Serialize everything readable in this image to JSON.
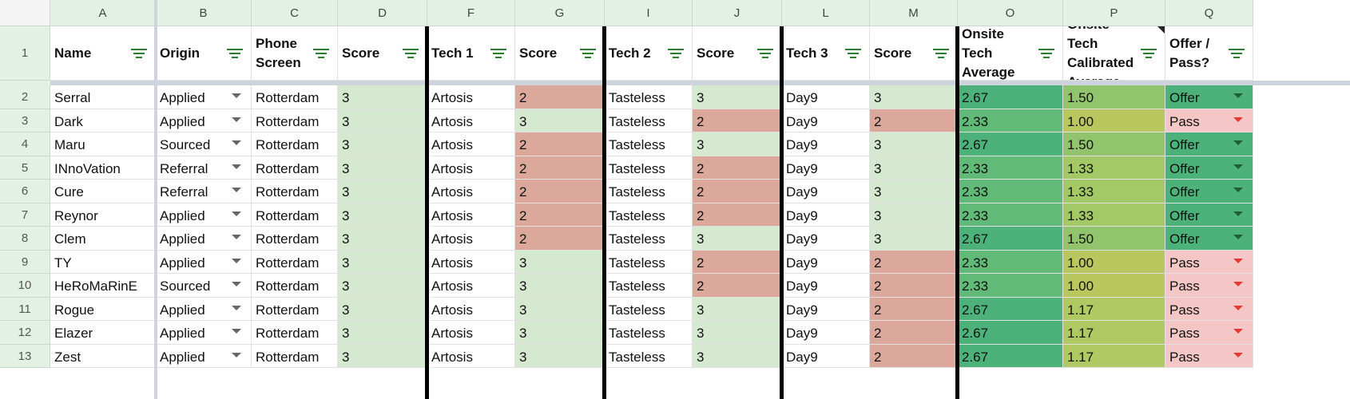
{
  "columns": [
    "A",
    "B",
    "C",
    "D",
    "F",
    "G",
    "I",
    "J",
    "L",
    "M",
    "O",
    "P",
    "Q"
  ],
  "headers": [
    "Name",
    "Origin",
    "Phone Screen",
    "Score",
    "Tech 1",
    "Score",
    "Tech 2",
    "Score",
    "Tech 3",
    "Score",
    "Onsite Tech Average",
    "Onsite Tech Calibrated Average",
    "Offer / Pass?"
  ],
  "header_row_number": "1",
  "rows": [
    {
      "n": "2",
      "name": "Serral",
      "origin": "Applied",
      "phone": "Rotterdam",
      "d": "3",
      "tech1": "Artosis",
      "g": "2",
      "tech2": "Tasteless",
      "j": "3",
      "tech3": "Day9",
      "m": "3",
      "o": "2.67",
      "p": "1.50",
      "q": "Offer"
    },
    {
      "n": "3",
      "name": "Dark",
      "origin": "Applied",
      "phone": "Rotterdam",
      "d": "3",
      "tech1": "Artosis",
      "g": "3",
      "tech2": "Tasteless",
      "j": "2",
      "tech3": "Day9",
      "m": "2",
      "o": "2.33",
      "p": "1.00",
      "q": "Pass"
    },
    {
      "n": "4",
      "name": "Maru",
      "origin": "Sourced",
      "phone": "Rotterdam",
      "d": "3",
      "tech1": "Artosis",
      "g": "2",
      "tech2": "Tasteless",
      "j": "3",
      "tech3": "Day9",
      "m": "3",
      "o": "2.67",
      "p": "1.50",
      "q": "Offer"
    },
    {
      "n": "5",
      "name": "INnoVation",
      "origin": "Referral",
      "phone": "Rotterdam",
      "d": "3",
      "tech1": "Artosis",
      "g": "2",
      "tech2": "Tasteless",
      "j": "2",
      "tech3": "Day9",
      "m": "3",
      "o": "2.33",
      "p": "1.33",
      "q": "Offer"
    },
    {
      "n": "6",
      "name": "Cure",
      "origin": "Referral",
      "phone": "Rotterdam",
      "d": "3",
      "tech1": "Artosis",
      "g": "2",
      "tech2": "Tasteless",
      "j": "2",
      "tech3": "Day9",
      "m": "3",
      "o": "2.33",
      "p": "1.33",
      "q": "Offer"
    },
    {
      "n": "7",
      "name": "Reynor",
      "origin": "Applied",
      "phone": "Rotterdam",
      "d": "3",
      "tech1": "Artosis",
      "g": "2",
      "tech2": "Tasteless",
      "j": "2",
      "tech3": "Day9",
      "m": "3",
      "o": "2.33",
      "p": "1.33",
      "q": "Offer"
    },
    {
      "n": "8",
      "name": "Clem",
      "origin": "Applied",
      "phone": "Rotterdam",
      "d": "3",
      "tech1": "Artosis",
      "g": "2",
      "tech2": "Tasteless",
      "j": "3",
      "tech3": "Day9",
      "m": "3",
      "o": "2.67",
      "p": "1.50",
      "q": "Offer"
    },
    {
      "n": "9",
      "name": "TY",
      "origin": "Applied",
      "phone": "Rotterdam",
      "d": "3",
      "tech1": "Artosis",
      "g": "3",
      "tech2": "Tasteless",
      "j": "2",
      "tech3": "Day9",
      "m": "2",
      "o": "2.33",
      "p": "1.00",
      "q": "Pass"
    },
    {
      "n": "10",
      "name": "HeRoMaRinE",
      "origin": "Sourced",
      "phone": "Rotterdam",
      "d": "3",
      "tech1": "Artosis",
      "g": "3",
      "tech2": "Tasteless",
      "j": "2",
      "tech3": "Day9",
      "m": "2",
      "o": "2.33",
      "p": "1.00",
      "q": "Pass"
    },
    {
      "n": "11",
      "name": "Rogue",
      "origin": "Applied",
      "phone": "Rotterdam",
      "d": "3",
      "tech1": "Artosis",
      "g": "3",
      "tech2": "Tasteless",
      "j": "3",
      "tech3": "Day9",
      "m": "2",
      "o": "2.67",
      "p": "1.17",
      "q": "Pass"
    },
    {
      "n": "12",
      "name": "Elazer",
      "origin": "Applied",
      "phone": "Rotterdam",
      "d": "3",
      "tech1": "Artosis",
      "g": "3",
      "tech2": "Tasteless",
      "j": "3",
      "tech3": "Day9",
      "m": "2",
      "o": "2.67",
      "p": "1.17",
      "q": "Pass"
    },
    {
      "n": "13",
      "name": "Zest",
      "origin": "Applied",
      "phone": "Rotterdam",
      "d": "3",
      "tech1": "Artosis",
      "g": "3",
      "tech2": "Tasteless",
      "j": "3",
      "tech3": "Day9",
      "m": "2",
      "o": "2.67",
      "p": "1.17",
      "q": "Pass"
    }
  ],
  "colors": {
    "header_bg": "#e3f1e4",
    "score_high": "#d5e8d0",
    "score_low": "#dba89b",
    "avg_high": "#4db27a",
    "avg_mid": "#62ba78",
    "cal_150": "#92c46e",
    "cal_133": "#a3c866",
    "cal_117": "#b0c962",
    "cal_100": "#b8c85f",
    "offer": "#4db27a",
    "pass": "#f4c7c6",
    "offer_arrow": "#1e5e34",
    "pass_arrow": "#e53935",
    "filter_icon": "#2f7d32",
    "origin_arrow": "#666666"
  },
  "icons": {
    "filter": "filter-icon",
    "dropdown": "dropdown-arrow-icon"
  }
}
